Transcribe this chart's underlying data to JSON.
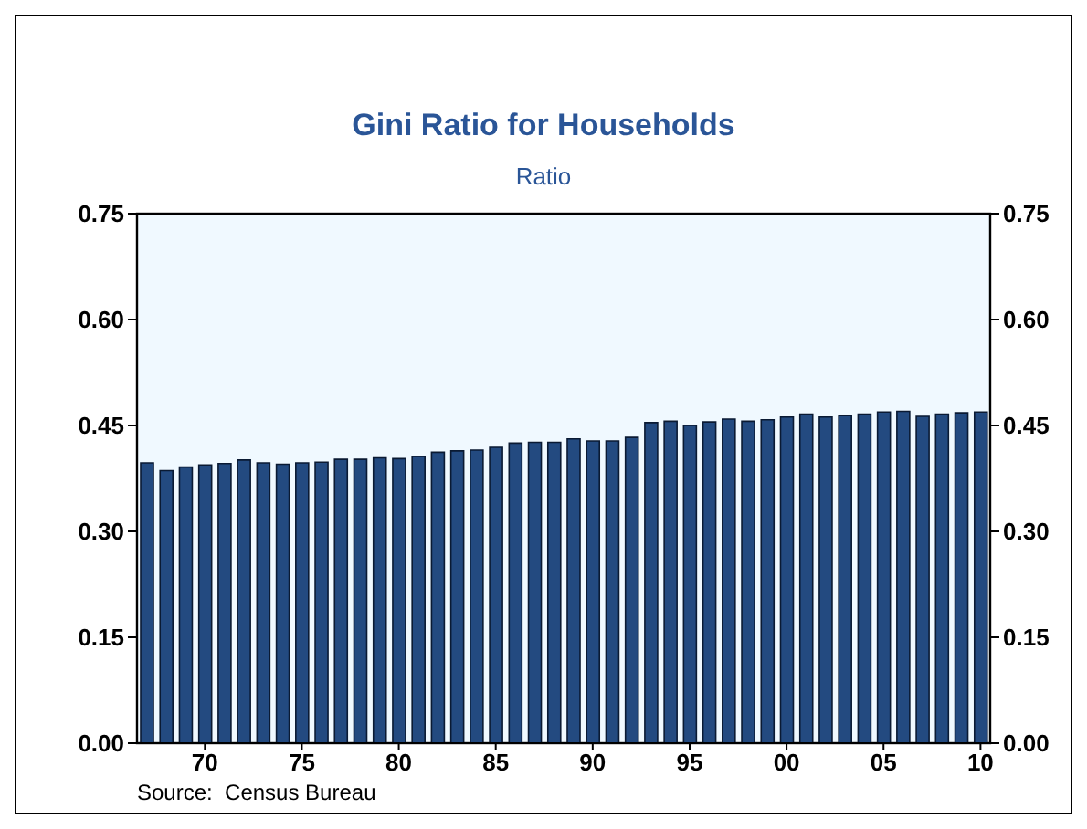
{
  "chart_data": {
    "type": "bar",
    "title": "Gini Ratio for Households",
    "subtitle": "Ratio",
    "x": [
      1967,
      1968,
      1969,
      1970,
      1971,
      1972,
      1973,
      1974,
      1975,
      1976,
      1977,
      1978,
      1979,
      1980,
      1981,
      1982,
      1983,
      1984,
      1985,
      1986,
      1987,
      1988,
      1989,
      1990,
      1991,
      1992,
      1993,
      1994,
      1995,
      1996,
      1997,
      1998,
      1999,
      2000,
      2001,
      2002,
      2003,
      2004,
      2005,
      2006,
      2007,
      2008,
      2009,
      2010
    ],
    "values": [
      0.397,
      0.386,
      0.391,
      0.394,
      0.396,
      0.401,
      0.397,
      0.395,
      0.397,
      0.398,
      0.402,
      0.402,
      0.404,
      0.403,
      0.406,
      0.412,
      0.414,
      0.415,
      0.419,
      0.425,
      0.426,
      0.426,
      0.431,
      0.428,
      0.428,
      0.433,
      0.454,
      0.456,
      0.45,
      0.455,
      0.459,
      0.456,
      0.458,
      0.462,
      0.466,
      0.462,
      0.464,
      0.466,
      0.469,
      0.47,
      0.463,
      0.466,
      0.468,
      0.469
    ],
    "color": "#234a80",
    "xlim": [
      1966.5,
      2010.5
    ],
    "xticks": [
      {
        "value": 1970,
        "label": "70"
      },
      {
        "value": 1975,
        "label": "75"
      },
      {
        "value": 1980,
        "label": "80"
      },
      {
        "value": 1985,
        "label": "85"
      },
      {
        "value": 1990,
        "label": "90"
      },
      {
        "value": 1995,
        "label": "95"
      },
      {
        "value": 2000,
        "label": "00"
      },
      {
        "value": 2005,
        "label": "05"
      },
      {
        "value": 2010,
        "label": "10"
      }
    ],
    "ylim": [
      0,
      0.75
    ],
    "yticks": [
      {
        "value": 0,
        "label": "0.00"
      },
      {
        "value": 0.15,
        "label": "0.15"
      },
      {
        "value": 0.3,
        "label": "0.30"
      },
      {
        "value": 0.45,
        "label": "0.45"
      },
      {
        "value": 0.6,
        "label": "0.60"
      },
      {
        "value": 0.75,
        "label": "0.75"
      }
    ],
    "y2lim": [
      0,
      0.75
    ],
    "y2ticks": [
      {
        "value": 0,
        "label": "0.00"
      },
      {
        "value": 0.15,
        "label": "0.15"
      },
      {
        "value": 0.3,
        "label": "0.30"
      },
      {
        "value": 0.45,
        "label": "0.45"
      },
      {
        "value": 0.6,
        "label": "0.60"
      },
      {
        "value": 0.75,
        "label": "0.75"
      }
    ],
    "annotations": [
      "Source:  Census Bureau"
    ]
  }
}
